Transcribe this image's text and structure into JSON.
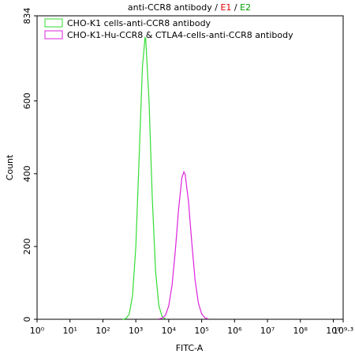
{
  "chart_data": {
    "type": "line",
    "title": [
      "anti-CCR8 antibody",
      " / ",
      "E1",
      " / ",
      "E2"
    ],
    "title_colors": [
      "#000000",
      "#000000",
      "#e00000",
      "#000000",
      "#00a000"
    ],
    "xlabel": "FITC-A",
    "ylabel": "Count",
    "xscale": "log",
    "legend": "upper left",
    "xlim": [
      1,
      1995262315
    ],
    "ylim": [
      0,
      834
    ],
    "xticks": [
      {
        "value": 1,
        "label": "10⁰"
      },
      {
        "value": 10,
        "label": "10¹"
      },
      {
        "value": 100,
        "label": "10²"
      },
      {
        "value": 1000,
        "label": "10³"
      },
      {
        "value": 10000,
        "label": "10⁴"
      },
      {
        "value": 100000,
        "label": "10⁵"
      },
      {
        "value": 1000000,
        "label": "10⁶"
      },
      {
        "value": 10000000,
        "label": "10⁷"
      },
      {
        "value": 100000000,
        "label": "10⁸"
      },
      {
        "value": 1000000000,
        "label": "10⁹"
      },
      {
        "value": 1995262315,
        "label": "10⁹·³"
      }
    ],
    "yticks": [
      0,
      200,
      400,
      600,
      834
    ],
    "series": [
      {
        "name": "CHO-K1 cells-anti-CCR8 antibody",
        "color": "#33dd33",
        "x": [
          398,
          501,
          631,
          794,
          1000,
          1259,
          1585,
          1905,
          1995,
          2512,
          3162,
          3981,
          5012,
          6310,
          7943
        ],
        "values": [
          0,
          2,
          14,
          64,
          199,
          442,
          693,
          774,
          772,
          603,
          334,
          132,
          37,
          7,
          1
        ]
      },
      {
        "name": "CHO-K1-Hu-CCR8 & CTLA4-cells-anti-CCR8 antibody",
        "color": "#dd22dd",
        "x": [
          5012,
          6310,
          7943,
          10000,
          12589,
          15849,
          19953,
          25119,
          28840,
          31623,
          39811,
          50119,
          63096,
          79433,
          100000,
          125893,
          158489
        ],
        "values": [
          1,
          3,
          11,
          37,
          93,
          188,
          303,
          389,
          405,
          398,
          324,
          211,
          109,
          45,
          15,
          4,
          1
        ]
      }
    ]
  }
}
